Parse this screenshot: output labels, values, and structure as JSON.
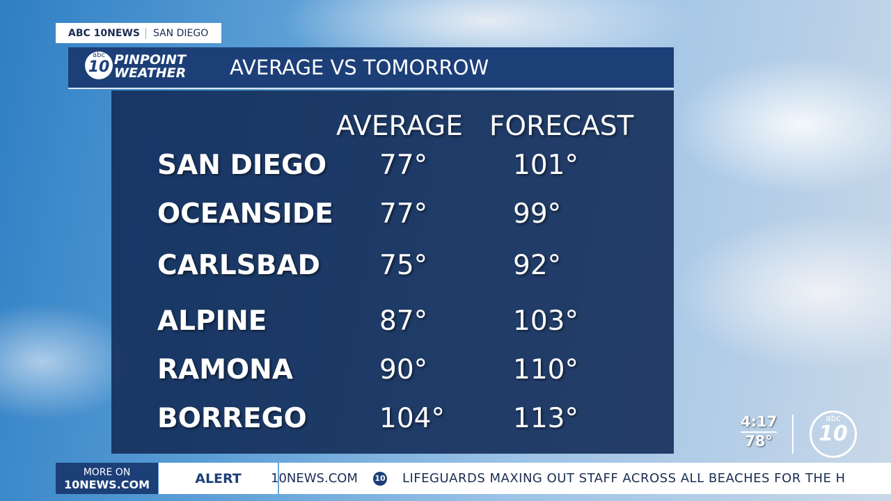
{
  "bug": {
    "station": "ABC 10NEWS",
    "city": "SAN DIEGO"
  },
  "header": {
    "logo_small": "abc",
    "logo_number": "10",
    "brand_top": "PINPOINT",
    "brand_bottom": "WEATHER",
    "title": "AVERAGE VS TOMORROW"
  },
  "table": {
    "columns": [
      "AVERAGE",
      "FORECAST"
    ],
    "rows": [
      [
        "SAN DIEGO",
        "77°",
        "101°"
      ],
      [
        "OCEANSIDE",
        "77°",
        "99°"
      ],
      [
        "CARLSBAD",
        "75°",
        "92°"
      ],
      [
        "ALPINE",
        "87°",
        "103°"
      ],
      [
        "RAMONA",
        "90°",
        "110°"
      ],
      [
        "BORREGO",
        "104°",
        "113°"
      ]
    ]
  },
  "status": {
    "time": "4:17",
    "temperature": "78°",
    "logo_small": "abc",
    "logo_number": "10"
  },
  "ticker": {
    "more_top": "MORE ON",
    "more_bottom": "10NEWS.COM",
    "label": "ALERT",
    "site": "10NEWS.COM",
    "logo_number": "10",
    "headline": "LIFEGUARDS MAXING OUT STAFF ACROSS ALL BEACHES FOR THE H"
  }
}
